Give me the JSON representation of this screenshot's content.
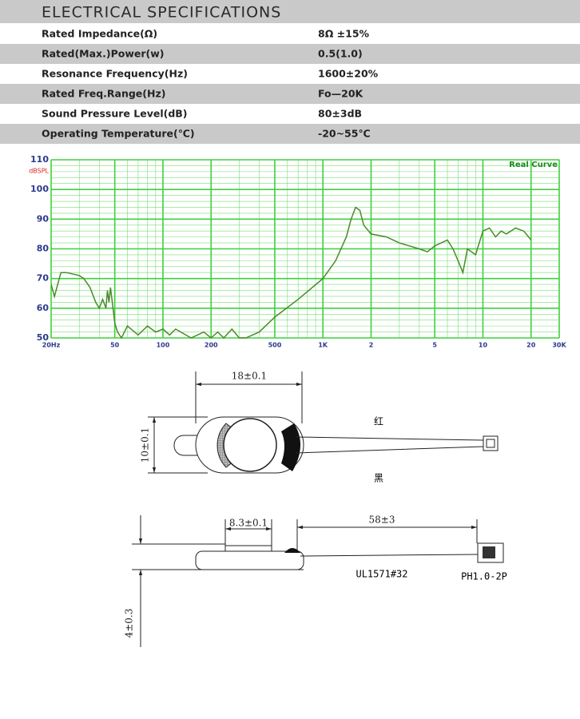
{
  "header": {
    "title": "ELECTRICAL SPECIFICATIONS"
  },
  "table": {
    "rows": [
      [
        "Rated  Impedance(Ω)",
        "8Ω ±15%"
      ],
      [
        "Rated(Max.)Power(w)",
        "0.5(1.0)"
      ],
      [
        "Resonance  Frequency(Hz)",
        "1600±20%"
      ],
      [
        "Rated  Freq.Range(Hz)",
        "Fo—20K"
      ],
      [
        "Sound  Pressure  Level(dB)",
        "80±3dB"
      ],
      [
        "Operating  Temperature(℃)",
        "-20~55℃"
      ]
    ]
  },
  "chart_data": {
    "type": "line",
    "y_label": "dBSPL",
    "annotation": "Real Curve",
    "xscale": "log",
    "grid": true,
    "color": "#4a8a2a",
    "grid_color": "#3fd03f",
    "xlim": [
      20,
      30000
    ],
    "ylim": [
      50,
      110
    ],
    "xticks": [
      {
        "value": 20,
        "label": "20Hz"
      },
      50,
      100,
      200,
      500,
      {
        "value": 1000,
        "label": "1K"
      },
      {
        "value": 2000,
        "label": "2"
      },
      {
        "value": 5000,
        "label": "5"
      },
      {
        "value": 10000,
        "label": "10"
      },
      {
        "value": 20000,
        "label": "20"
      },
      {
        "value": 30000,
        "label": "30K"
      }
    ],
    "yticks": [
      50,
      60,
      70,
      80,
      90,
      100,
      110
    ],
    "x": [
      20,
      21,
      23,
      25,
      30,
      32,
      35,
      38,
      40,
      42,
      44,
      45,
      46,
      47,
      50,
      52,
      55,
      60,
      70,
      80,
      90,
      100,
      110,
      120,
      150,
      180,
      200,
      220,
      240,
      270,
      300,
      330,
      400,
      500,
      700,
      1000,
      1200,
      1400,
      1500,
      1600,
      1700,
      1800,
      2000,
      2500,
      3000,
      4000,
      4500,
      5000,
      6000,
      6500,
      7000,
      7500,
      8000,
      9000,
      10000,
      11000,
      12000,
      13000,
      14000,
      16000,
      18000,
      20000
    ],
    "values": [
      68,
      64,
      72,
      72,
      71,
      70,
      67,
      62,
      60,
      63,
      60,
      66,
      62,
      67,
      55,
      52,
      50,
      54,
      51,
      54,
      52,
      53,
      51,
      53,
      50,
      52,
      50,
      52,
      50,
      53,
      50,
      50,
      52,
      57,
      63,
      70,
      76,
      84,
      90,
      94,
      93,
      88,
      85,
      84,
      82,
      80,
      79,
      81,
      83,
      80,
      76,
      72,
      80,
      78,
      86,
      87,
      84,
      86,
      85,
      87,
      86,
      83
    ]
  },
  "drawing": {
    "width": "18±0.1",
    "height": "10±0.1",
    "red": "红",
    "black": "黑",
    "inner": "8.3±0.1",
    "lead": "58±3",
    "wire": "UL1571#32",
    "connector": "PH1.0-2P",
    "thickness": "4±0.3"
  }
}
